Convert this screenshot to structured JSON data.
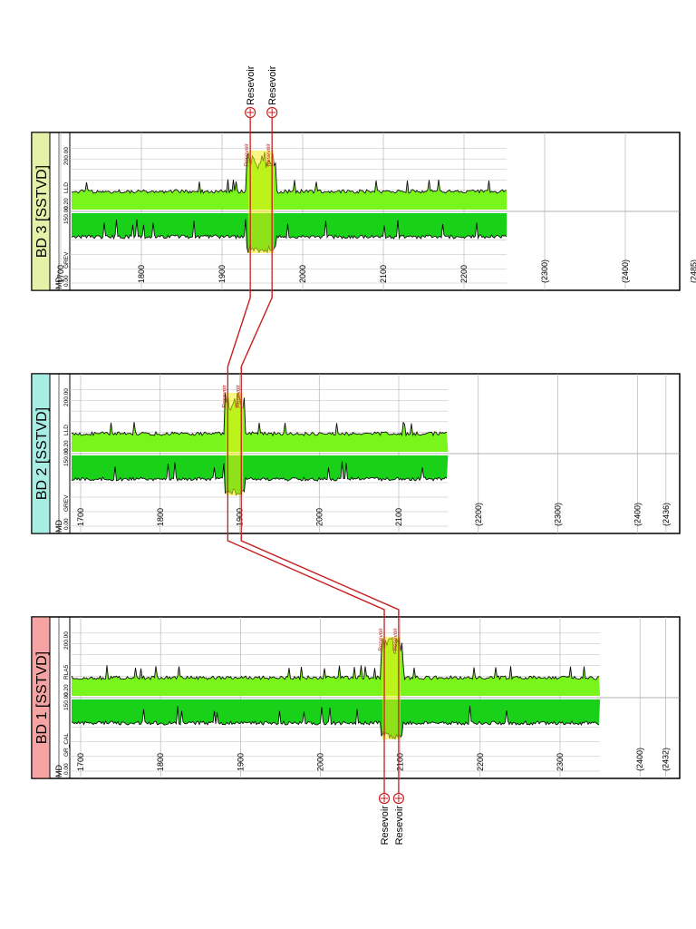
{
  "wells": [
    {
      "title": "BD 1 [SSTVD]",
      "header_color": "#f5a3a3",
      "md_label": "MD",
      "track1": {
        "min": "0.00",
        "curve": "GR_CAL",
        "max": "150.00"
      },
      "track2": {
        "min": "0.20",
        "curve": "RLA5",
        "max": "200.00"
      },
      "depth_ticks": [
        {
          "depth": 1700,
          "label": "1700"
        },
        {
          "depth": 1800,
          "label": "1800"
        },
        {
          "depth": 1900,
          "label": "1900"
        },
        {
          "depth": 2000,
          "label": "2000"
        },
        {
          "depth": 2100,
          "label": "2100"
        },
        {
          "depth": 2200,
          "label": "2200"
        },
        {
          "depth": 2300,
          "label": "2300"
        },
        {
          "depth": 2400,
          "label": "(2400)"
        },
        {
          "depth": 2432,
          "label": "(2432)"
        }
      ],
      "log_range": [
        1672,
        2350
      ],
      "tops": [
        {
          "name": "Resevoir",
          "depth": 2080
        },
        {
          "name": "Resevoir",
          "depth": 2098
        }
      ]
    },
    {
      "title": "BD 2 [SSTVD]",
      "header_color": "#a8ede3",
      "md_label": "MD",
      "track1": {
        "min": "0.00",
        "curve": "GREV",
        "max": "150.00"
      },
      "track2": {
        "min": "0.20",
        "curve": "LLD",
        "max": "200.00"
      },
      "depth_ticks": [
        {
          "depth": 1700,
          "label": "1700"
        },
        {
          "depth": 1800,
          "label": "1800"
        },
        {
          "depth": 1900,
          "label": "1900"
        },
        {
          "depth": 2000,
          "label": "2000"
        },
        {
          "depth": 2100,
          "label": "2100"
        },
        {
          "depth": 2200,
          "label": "(2200)"
        },
        {
          "depth": 2300,
          "label": "(2300)"
        },
        {
          "depth": 2400,
          "label": "(2400)"
        },
        {
          "depth": 2436,
          "label": "(2436)"
        }
      ],
      "log_range": [
        1680,
        2162
      ],
      "tops": [
        {
          "name": "Resevoir",
          "depth": 1885
        },
        {
          "name": "Resevoir",
          "depth": 1902
        }
      ]
    },
    {
      "title": "BD 3 [SSTVD]",
      "header_color": "#e6f0a8",
      "md_label": "MD",
      "track1": {
        "min": "0.00",
        "curve": "GREV",
        "max": "150.00"
      },
      "track2": {
        "min": "0.20",
        "curve": "LLD",
        "max": "200.00"
      },
      "depth_ticks": [
        {
          "depth": 1700,
          "label": "1700"
        },
        {
          "depth": 1800,
          "label": "1800"
        },
        {
          "depth": 1900,
          "label": "1900"
        },
        {
          "depth": 2000,
          "label": "2000"
        },
        {
          "depth": 2100,
          "label": "2100"
        },
        {
          "depth": 2200,
          "label": "2200"
        },
        {
          "depth": 2300,
          "label": "(2300)"
        },
        {
          "depth": 2400,
          "label": "(2400)"
        },
        {
          "depth": 2485,
          "label": "(2485)"
        }
      ],
      "log_range": [
        1700,
        2253
      ],
      "tops": [
        {
          "name": "Resevoir",
          "depth": 1935
        },
        {
          "name": "Resevoir",
          "depth": 1962
        }
      ]
    }
  ],
  "correlation_color": "#c81e1e",
  "fill_colors": {
    "gamma": "#19d119",
    "resistivity": "#7af51c",
    "reservoir": "#f0f01a"
  }
}
